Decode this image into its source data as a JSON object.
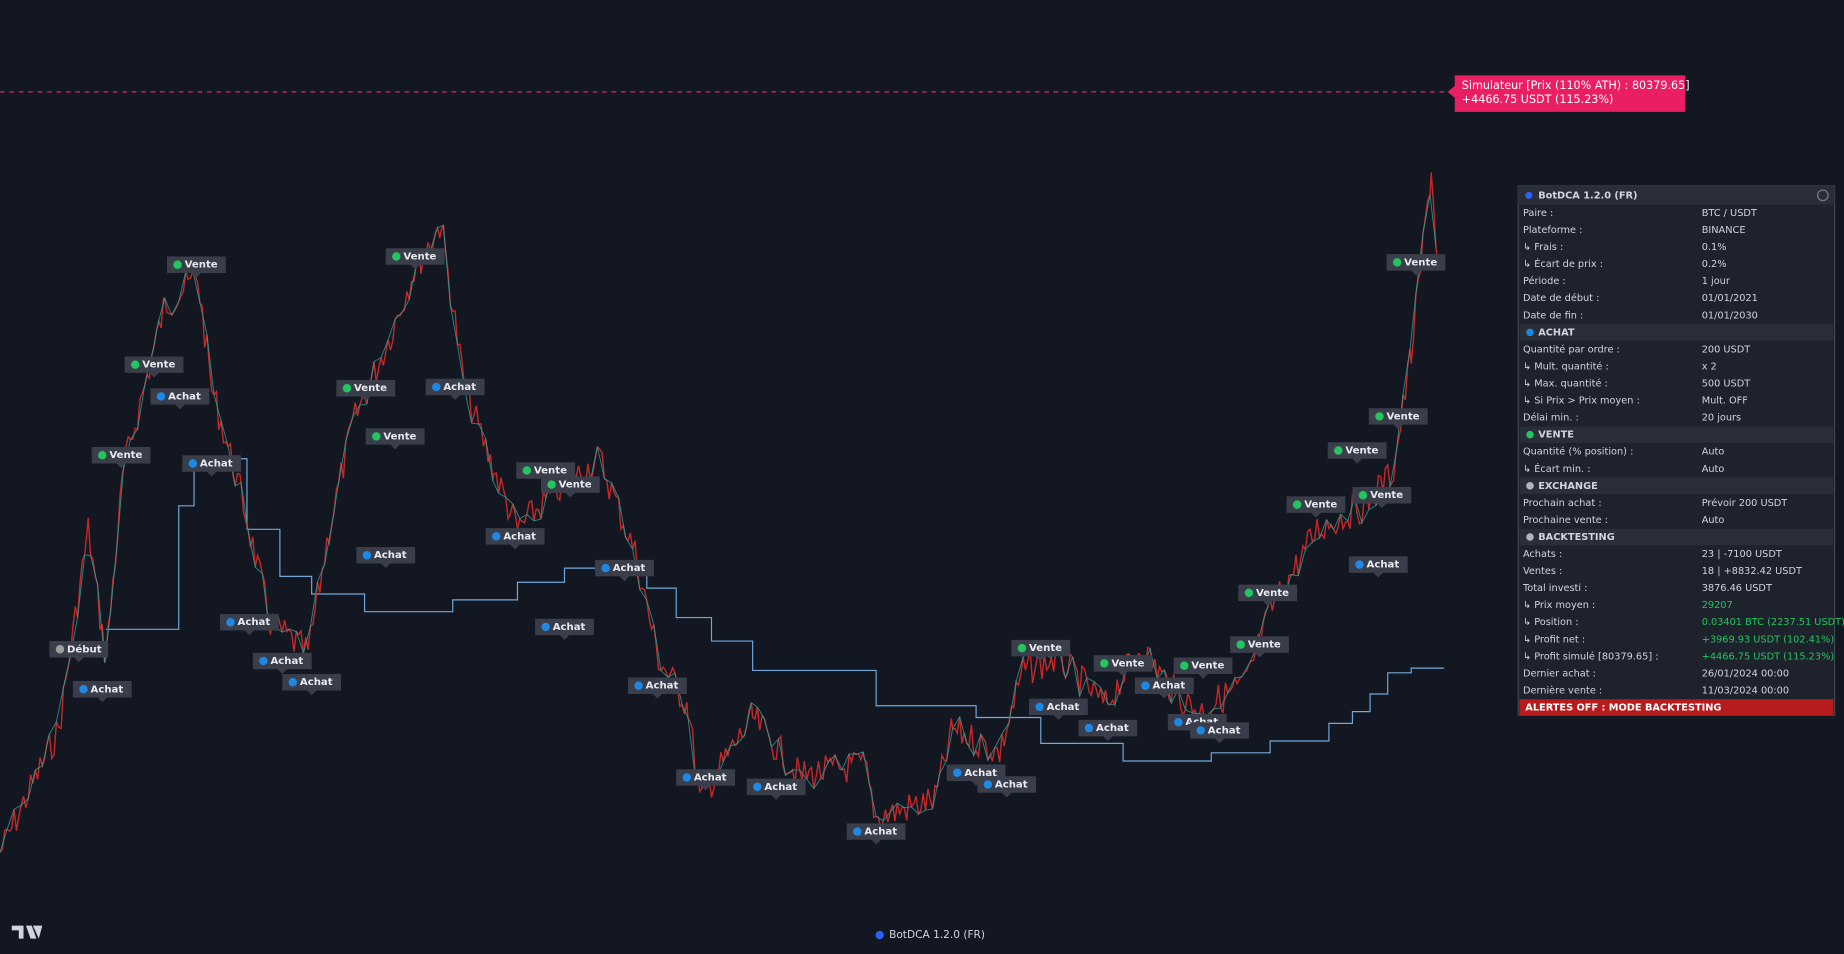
{
  "simulator": {
    "line1": "Simulateur [Prix (110% ATH) : 80379.65]",
    "line2": "+4466.75 USDT (115.23%)"
  },
  "markers": [
    "Vente",
    "Vente",
    "Achat",
    "Vente",
    "Achat",
    "Début",
    "Achat",
    "Vente",
    "Vente",
    "Achat",
    "Vente",
    "Achat",
    "Achat",
    "Achat",
    "Achat",
    "Vente",
    "Vente",
    "Achat",
    "Achat",
    "Achat",
    "Achat",
    "Achat",
    "Achat",
    "Achat",
    "Achat",
    "Achat",
    "Vente",
    "Achat",
    "Vente",
    "Achat",
    "Achat",
    "Vente",
    "Achat",
    "Achat",
    "Vente",
    "Vente",
    "Vente",
    "Vente",
    "Vente",
    "Achat",
    "Vente",
    "Vente"
  ],
  "table": {
    "title": "BotDCA 1.2.0 (FR)",
    "rows": [
      [
        "Paire :",
        "BTC / USDT"
      ],
      [
        "Plateforme :",
        "BINANCE"
      ],
      [
        "↳ Frais :",
        "0.1%"
      ],
      [
        "↳ Écart de prix :",
        "0.2%"
      ],
      [
        "Période :",
        "1 jour"
      ],
      [
        "Date de début :",
        "01/01/2021"
      ],
      [
        "Date de fin :",
        "01/01/2030"
      ],
      "ACHAT",
      [
        "Quantité par ordre :",
        "200 USDT"
      ],
      [
        "↳ Mult. quantité :",
        "x 2"
      ],
      [
        "  ↳ Max. quantité :",
        "500 USDT"
      ],
      [
        "  ↳ Si Prix > Prix moyen :",
        "Mult. OFF"
      ],
      [
        "Délai min. :",
        "20 jours"
      ],
      "VENTE",
      [
        "Quantité (% position) :",
        "Auto"
      ],
      [
        "↳ Écart min. :",
        "Auto"
      ],
      "EXCHANGE",
      [
        "Prochain achat :",
        "Prévoir 200 USDT"
      ],
      [
        "Prochaine vente :",
        "Auto"
      ],
      "BACKTESTING",
      [
        "Achats :",
        "23 | -7100 USDT"
      ],
      [
        "Ventes :",
        "18 | +8832.42 USDT"
      ],
      [
        "Total investi :",
        "3876.46 USDT"
      ],
      [
        "↳ Prix moyen :",
        "29207"
      ],
      [
        "↳ Position :",
        "0.03401 BTC (2237.51 USDT)"
      ],
      [
        "↳ Profit net :",
        "+3969.93 USDT (102.41%)"
      ],
      [
        "↳ Profit simulé [80379.65] :",
        "+4466.75 USDT (115.23%)"
      ],
      [
        "Dernier achat :",
        "26/01/2024 00:00"
      ],
      [
        "Dernière vente :",
        "11/03/2024 00:00"
      ]
    ],
    "alert": "ALERTES OFF : MODE BACKTESTING"
  },
  "footer": "BotDCA 1.2.0 (FR)"
}
